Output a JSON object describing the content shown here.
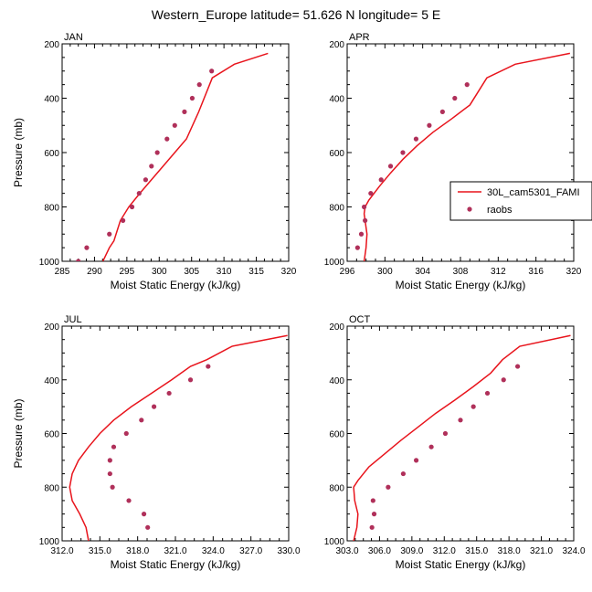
{
  "title": "Western_Europe  latitude= 51.626 N longitude= 5 E",
  "legend": {
    "placement": "right",
    "entries": [
      {
        "label": "30L_cam5301_FAMI",
        "kind": "line",
        "color": "#e8141c"
      },
      {
        "label": "raobs",
        "kind": "marker",
        "color": "#b0305a"
      }
    ]
  },
  "chart_data": [
    {
      "type": "line",
      "title": "JAN",
      "xlabel": "Moist Static Energy (kJ/kg)",
      "ylabel": "Pressure (mb)",
      "xlim": [
        285,
        320
      ],
      "ylim": [
        1000,
        200
      ],
      "xticks": [
        "285",
        "290",
        "295",
        "300",
        "305",
        "310",
        "315",
        "320"
      ],
      "yticks": [
        "200",
        "400",
        "600",
        "800",
        "1000"
      ],
      "series": [
        {
          "name": "30L_cam5301_FAMI",
          "style": "line",
          "color": "#e8141c",
          "x": [
            291.3,
            291.8,
            292.3,
            293.0,
            294.0,
            295.3,
            297.0,
            298.8,
            300.6,
            302.4,
            304.2,
            306.1,
            308.2,
            311.6,
            316.8
          ],
          "y": [
            1000,
            975,
            950,
            925,
            850,
            800,
            750,
            700,
            650,
            600,
            550,
            450,
            325,
            275,
            235
          ]
        },
        {
          "name": "raobs",
          "style": "marker",
          "color": "#b0305a",
          "x": [
            287.5,
            288.8,
            292.3,
            294.4,
            295.8,
            296.9,
            297.9,
            298.8,
            299.7,
            301.2,
            302.4,
            303.9,
            305.1,
            306.2,
            308.1
          ],
          "y": [
            1000,
            950,
            900,
            850,
            800,
            750,
            700,
            650,
            600,
            550,
            500,
            450,
            400,
            350,
            300
          ]
        }
      ]
    },
    {
      "type": "line",
      "title": "APR",
      "xlabel": "Moist Static Energy (kJ/kg)",
      "ylabel": "",
      "xlim": [
        296,
        320
      ],
      "ylim": [
        1000,
        200
      ],
      "xticks": [
        "296",
        "300",
        "304",
        "308",
        "312",
        "316",
        "320"
      ],
      "yticks": [
        "200",
        "400",
        "600",
        "800",
        "1000"
      ],
      "series": [
        {
          "name": "30L_cam5301_FAMI",
          "style": "line",
          "color": "#e8141c",
          "x": [
            297.8,
            298.0,
            298.1,
            297.9,
            297.8,
            297.9,
            298.3,
            299.4,
            300.6,
            301.9,
            303.4,
            305.1,
            307.1,
            309.0,
            310.8,
            313.8,
            319.6
          ],
          "y": [
            1000,
            950,
            900,
            850,
            825,
            800,
            775,
            725,
            675,
            625,
            575,
            525,
            475,
            425,
            325,
            275,
            235
          ]
        },
        {
          "name": "raobs",
          "style": "marker",
          "color": "#b0305a",
          "x": [
            297.1,
            297.5,
            297.9,
            297.8,
            298.5,
            299.6,
            300.6,
            301.9,
            303.3,
            304.7,
            306.1,
            307.4,
            308.7
          ],
          "y": [
            950,
            900,
            850,
            800,
            750,
            700,
            650,
            600,
            550,
            500,
            450,
            400,
            350
          ]
        }
      ]
    },
    {
      "type": "line",
      "title": "JUL",
      "xlabel": "Moist Static Energy (kJ/kg)",
      "ylabel": "Pressure (mb)",
      "xlim": [
        312,
        330
      ],
      "ylim": [
        1000,
        200
      ],
      "xticks": [
        "312.0",
        "315.0",
        "318.0",
        "321.0",
        "324.0",
        "327.0",
        "330.0"
      ],
      "yticks": [
        "200",
        "400",
        "600",
        "800",
        "1000"
      ],
      "series": [
        {
          "name": "30L_cam5301_FAMI",
          "style": "line",
          "color": "#e8141c",
          "x": [
            314.1,
            313.9,
            313.4,
            312.8,
            312.6,
            312.8,
            313.3,
            314.1,
            315.0,
            316.1,
            317.5,
            319.1,
            320.7,
            322.2,
            323.5,
            325.5,
            329.9
          ],
          "y": [
            1000,
            950,
            900,
            850,
            800,
            750,
            700,
            650,
            600,
            550,
            500,
            450,
            400,
            350,
            325,
            275,
            235
          ]
        },
        {
          "name": "raobs",
          "style": "marker",
          "color": "#b0305a",
          "x": [
            318.8,
            318.5,
            317.3,
            316.0,
            315.8,
            315.8,
            316.1,
            317.1,
            318.3,
            319.3,
            320.5,
            322.2,
            323.6
          ],
          "y": [
            950,
            900,
            850,
            800,
            750,
            700,
            650,
            600,
            550,
            500,
            450,
            400,
            350
          ]
        }
      ]
    },
    {
      "type": "line",
      "title": "OCT",
      "xlabel": "Moist Static Energy (kJ/kg)",
      "ylabel": "",
      "xlim": [
        303,
        324
      ],
      "ylim": [
        1000,
        200
      ],
      "xticks": [
        "303.0",
        "306.0",
        "309.0",
        "312.0",
        "315.0",
        "318.0",
        "321.0",
        "324.0"
      ],
      "yticks": [
        "200",
        "400",
        "600",
        "800",
        "1000"
      ],
      "series": [
        {
          "name": "30L_cam5301_FAMI",
          "style": "line",
          "color": "#e8141c",
          "x": [
            303.6,
            303.9,
            304.0,
            303.7,
            303.6,
            304.0,
            305.0,
            306.5,
            308.0,
            309.6,
            311.2,
            313.0,
            314.7,
            316.3,
            317.4,
            319.0,
            323.7
          ],
          "y": [
            1000,
            950,
            900,
            850,
            800,
            775,
            725,
            675,
            625,
            575,
            525,
            475,
            425,
            375,
            325,
            275,
            235
          ]
        },
        {
          "name": "raobs",
          "style": "marker",
          "color": "#b0305a",
          "x": [
            305.3,
            305.5,
            305.4,
            306.8,
            308.2,
            309.4,
            310.8,
            312.1,
            313.5,
            314.7,
            316.0,
            317.5,
            318.8
          ],
          "y": [
            950,
            900,
            850,
            800,
            750,
            700,
            650,
            600,
            550,
            500,
            450,
            400,
            350
          ]
        }
      ]
    }
  ]
}
